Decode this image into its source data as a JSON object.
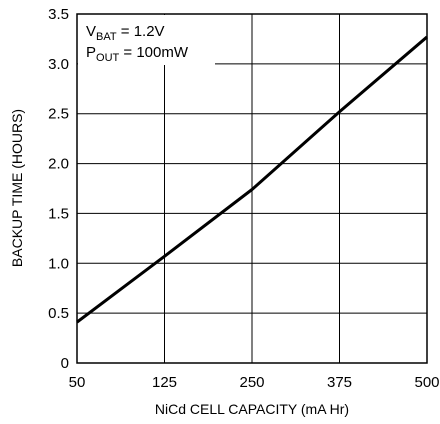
{
  "chart_data": {
    "type": "line",
    "xlabel": "NiCd CELL CAPACITY (mA Hr)",
    "ylabel": "BACKUP TIME (HOURS)",
    "x_ticks": [
      "50",
      "125",
      "250",
      "375",
      "500"
    ],
    "y_ticks": [
      "0",
      "0.5",
      "1.0",
      "1.5",
      "2.0",
      "2.5",
      "3.0",
      "3.5"
    ],
    "y_range": [
      0,
      3.5
    ],
    "grid": true,
    "legend": "none",
    "annotations": {
      "line1": {
        "main": "V",
        "sub": "BAT",
        "rest": " = 1.2V"
      },
      "line2": {
        "main": "P",
        "sub": "OUT",
        "rest": " = 100mW"
      }
    },
    "series": [
      {
        "x_tick_index": [
          0,
          1,
          2,
          3,
          4
        ],
        "values": [
          0.41,
          1.07,
          1.74,
          2.52,
          3.27
        ]
      }
    ]
  }
}
